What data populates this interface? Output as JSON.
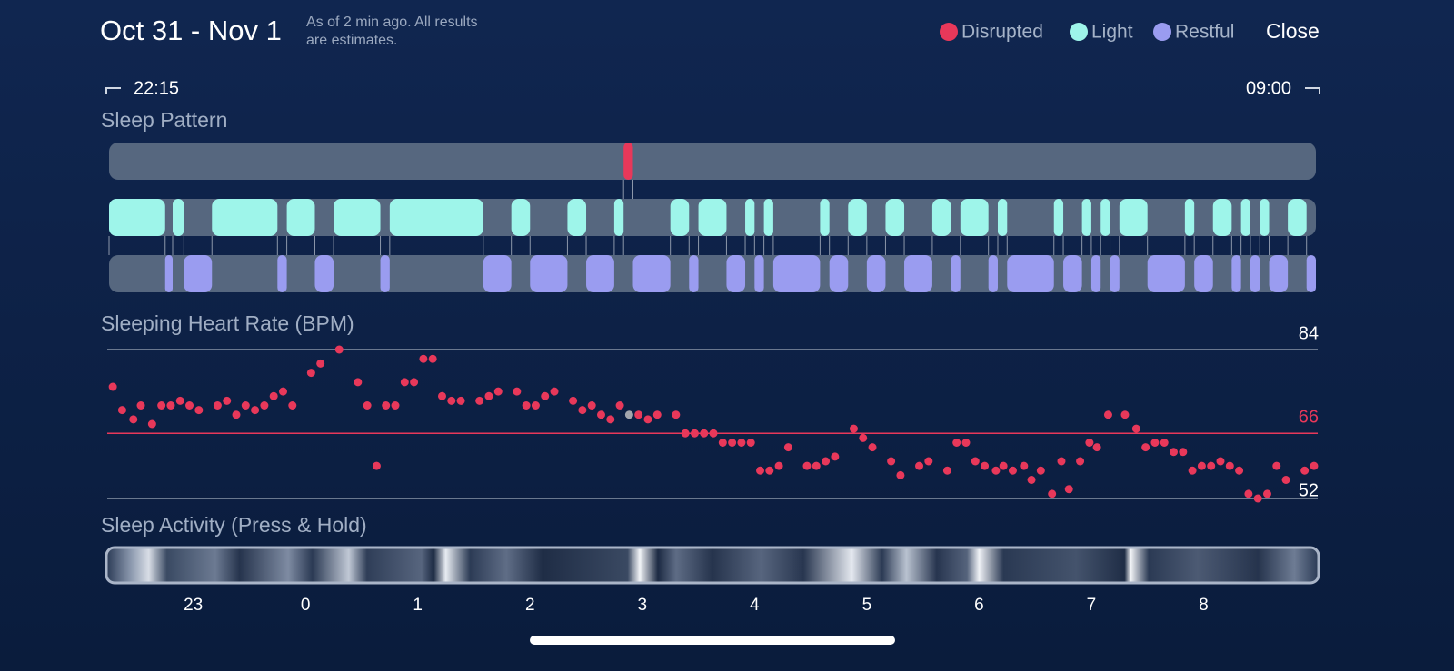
{
  "header": {
    "title": "Oct 31 - Nov 1",
    "note": [
      "As of 2 min ago. All results",
      "are estimates."
    ],
    "legend": [
      {
        "name": "Disrupted",
        "color": "#e8385a"
      },
      {
        "name": "Light",
        "color": "#9ef5ea"
      },
      {
        "name": "Restful",
        "color": "#9a9cf0"
      }
    ],
    "close": "Close"
  },
  "range": {
    "start": "22:15",
    "end": "09:00"
  },
  "timeline": {
    "xlim": [
      0,
      645
    ],
    "xticks": [
      {
        "value": 45,
        "label": "23"
      },
      {
        "value": 105,
        "label": "0"
      },
      {
        "value": 165,
        "label": "1"
      },
      {
        "value": 225,
        "label": "2"
      },
      {
        "value": 285,
        "label": "3"
      },
      {
        "value": 345,
        "label": "4"
      },
      {
        "value": 405,
        "label": "5"
      },
      {
        "value": 465,
        "label": "6"
      },
      {
        "value": 525,
        "label": "7"
      },
      {
        "value": 585,
        "label": "8"
      }
    ]
  },
  "sleep_pattern": {
    "title": "Sleep Pattern",
    "disrupted": [
      [
        275,
        280
      ]
    ],
    "light": [
      [
        0,
        30
      ],
      [
        34,
        40
      ],
      [
        55,
        90
      ],
      [
        95,
        110
      ],
      [
        120,
        145
      ],
      [
        150,
        200
      ],
      [
        215,
        225
      ],
      [
        245,
        255
      ],
      [
        270,
        275
      ],
      [
        300,
        310
      ],
      [
        315,
        330
      ],
      [
        340,
        345
      ],
      [
        350,
        355
      ],
      [
        380,
        385
      ],
      [
        395,
        405
      ],
      [
        415,
        425
      ],
      [
        440,
        450
      ],
      [
        455,
        470
      ],
      [
        475,
        480
      ],
      [
        505,
        510
      ],
      [
        520,
        525
      ],
      [
        530,
        535
      ],
      [
        540,
        555
      ],
      [
        575,
        580
      ],
      [
        590,
        600
      ],
      [
        605,
        610
      ],
      [
        615,
        620
      ],
      [
        630,
        640
      ]
    ],
    "restful": [
      [
        30,
        34
      ],
      [
        40,
        55
      ],
      [
        90,
        95
      ],
      [
        110,
        120
      ],
      [
        145,
        150
      ],
      [
        200,
        215
      ],
      [
        225,
        245
      ],
      [
        255,
        270
      ],
      [
        280,
        300
      ],
      [
        310,
        315
      ],
      [
        330,
        340
      ],
      [
        345,
        350
      ],
      [
        355,
        380
      ],
      [
        385,
        395
      ],
      [
        405,
        415
      ],
      [
        425,
        440
      ],
      [
        450,
        455
      ],
      [
        470,
        475
      ],
      [
        480,
        505
      ],
      [
        510,
        520
      ],
      [
        525,
        530
      ],
      [
        535,
        540
      ],
      [
        555,
        575
      ],
      [
        580,
        590
      ],
      [
        600,
        605
      ],
      [
        610,
        615
      ],
      [
        620,
        630
      ],
      [
        640,
        645
      ]
    ]
  },
  "heart_rate": {
    "title": "Sleeping Heart Rate (BPM)",
    "ylim": [
      52,
      84
    ],
    "yticks": [
      52,
      84
    ],
    "average": 66,
    "average_color": "#e8385a",
    "color": "#e8385a",
    "selected": 48,
    "selected_color": "#a3a6ad",
    "x": [
      2,
      7,
      13,
      17,
      23,
      28,
      33,
      38,
      43,
      48,
      58,
      63,
      68,
      73,
      78,
      83,
      88,
      93,
      98,
      108,
      113,
      123,
      133,
      138,
      143,
      148,
      153,
      158,
      163,
      168,
      173,
      178,
      183,
      188,
      198,
      203,
      208,
      218,
      223,
      228,
      233,
      238,
      248,
      253,
      258,
      263,
      268,
      273,
      278,
      283,
      288,
      293,
      303,
      308,
      313,
      318,
      323,
      328,
      333,
      338,
      343,
      348,
      353,
      358,
      363,
      373,
      378,
      383,
      388,
      398,
      403,
      408,
      418,
      423,
      433,
      438,
      448,
      453,
      458,
      463,
      468,
      474,
      478,
      483,
      489,
      493,
      498,
      504,
      509,
      513,
      519,
      524,
      528,
      534,
      543,
      549,
      554,
      559,
      564,
      569,
      574,
      579,
      584,
      589,
      594,
      599,
      604,
      609,
      614,
      619,
      624,
      629,
      639,
      644
    ],
    "values": [
      76,
      71,
      69,
      72,
      68,
      72,
      72,
      73,
      72,
      71,
      72,
      73,
      70,
      72,
      71,
      72,
      74,
      75,
      72,
      79,
      81,
      84,
      77,
      72,
      59,
      72,
      72,
      77,
      77,
      82,
      82,
      74,
      73,
      73,
      73,
      74,
      75,
      75,
      72,
      72,
      74,
      75,
      73,
      71,
      72,
      70,
      69,
      72,
      70,
      70,
      69,
      70,
      70,
      66,
      66,
      66,
      66,
      64,
      64,
      64,
      64,
      58,
      58,
      59,
      63,
      59,
      59,
      60,
      61,
      67,
      65,
      63,
      60,
      57,
      59,
      60,
      58,
      64,
      64,
      60,
      59,
      58,
      59,
      58,
      59,
      56,
      58,
      53,
      60,
      54,
      60,
      64,
      63,
      70,
      70,
      67,
      63,
      64,
      64,
      62,
      62,
      58,
      59,
      59,
      60,
      59,
      58,
      53,
      52,
      53,
      59,
      56,
      58,
      59
    ]
  },
  "activity": {
    "title": "Sleep Activity (Press & Hold)"
  }
}
